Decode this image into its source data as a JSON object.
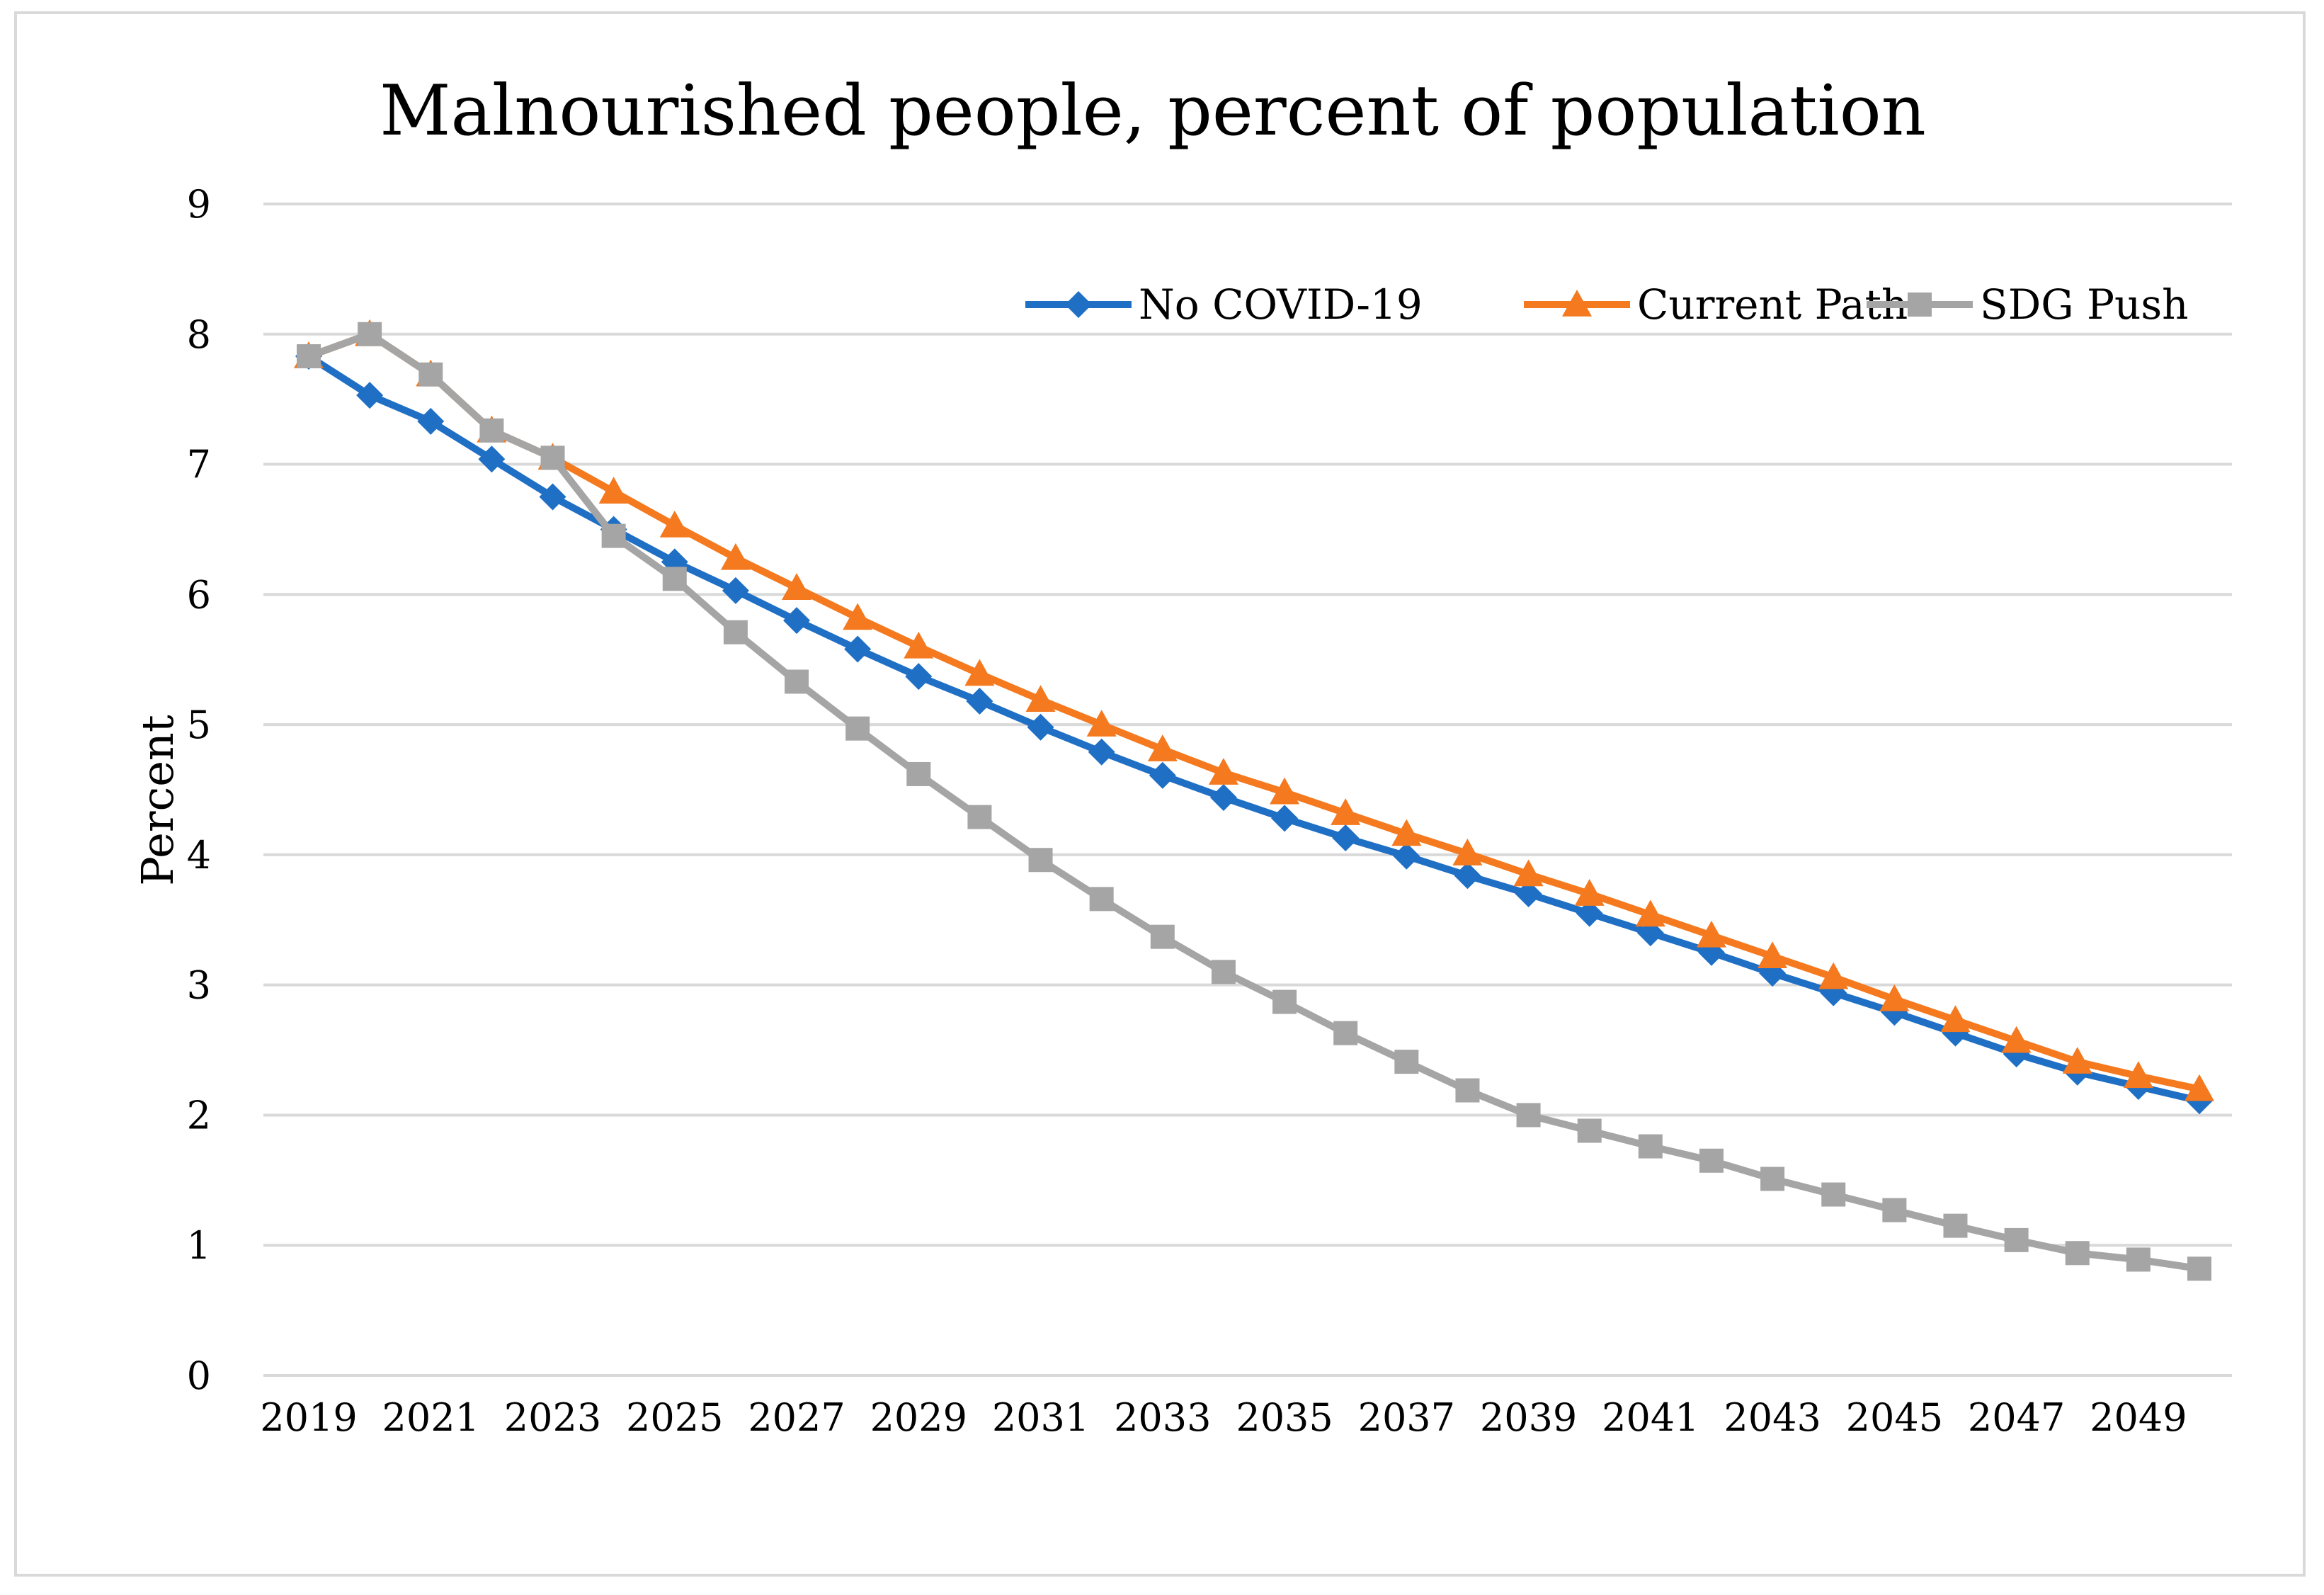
{
  "chart_data": {
    "type": "line",
    "title": "Malnourished people, percent of population",
    "xlabel": "",
    "ylabel": "Percent",
    "ylim": [
      0,
      9
    ],
    "yticks": [
      "0",
      "1",
      "2",
      "3",
      "4",
      "5",
      "6",
      "7",
      "8",
      "9"
    ],
    "grid": true,
    "legend_position": "top-right",
    "x": [
      2019,
      2020,
      2021,
      2022,
      2023,
      2024,
      2025,
      2026,
      2027,
      2028,
      2029,
      2030,
      2031,
      2032,
      2033,
      2034,
      2035,
      2036,
      2037,
      2038,
      2039,
      2040,
      2041,
      2042,
      2043,
      2044,
      2045,
      2046,
      2047,
      2048,
      2049,
      2050
    ],
    "xtick_labels": [
      "2019",
      "2021",
      "2023",
      "2025",
      "2027",
      "2029",
      "2031",
      "2033",
      "2035",
      "2037",
      "2039",
      "2041",
      "2043",
      "2045",
      "2047",
      "2049"
    ],
    "series": [
      {
        "name": "No COVID-19",
        "color": "#1f6fc5",
        "marker": "diamond",
        "values": [
          7.83,
          7.53,
          7.33,
          7.04,
          6.75,
          6.5,
          6.25,
          6.03,
          5.8,
          5.58,
          5.37,
          5.18,
          4.98,
          4.79,
          4.61,
          4.44,
          4.28,
          4.13,
          3.99,
          3.84,
          3.7,
          3.55,
          3.4,
          3.25,
          3.09,
          2.94,
          2.79,
          2.63,
          2.47,
          2.33,
          2.22,
          2.11
        ]
      },
      {
        "name": "Current Path",
        "color": "#f4791f",
        "marker": "triangle",
        "values": [
          7.83,
          8.0,
          7.69,
          7.26,
          7.05,
          6.79,
          6.53,
          6.28,
          6.05,
          5.82,
          5.6,
          5.39,
          5.19,
          5.0,
          4.81,
          4.63,
          4.48,
          4.32,
          4.16,
          4.01,
          3.85,
          3.7,
          3.54,
          3.38,
          3.22,
          3.06,
          2.89,
          2.73,
          2.57,
          2.41,
          2.3,
          2.2
        ]
      },
      {
        "name": "SDG Push",
        "color": "#a5a5a5",
        "marker": "square",
        "values": [
          7.83,
          8.0,
          7.69,
          7.26,
          7.05,
          6.45,
          6.12,
          5.71,
          5.33,
          4.97,
          4.62,
          4.29,
          3.96,
          3.66,
          3.37,
          3.1,
          2.87,
          2.63,
          2.41,
          2.19,
          2.0,
          1.88,
          1.76,
          1.65,
          1.51,
          1.39,
          1.27,
          1.15,
          1.04,
          0.94,
          0.89,
          0.82
        ]
      }
    ]
  }
}
